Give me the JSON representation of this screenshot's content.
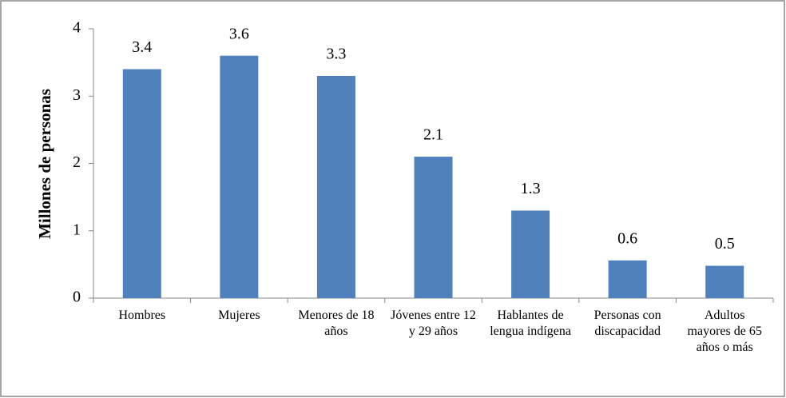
{
  "chart_data": {
    "type": "bar",
    "categories": [
      "Hombres",
      "Mujeres",
      "Menores de 18 años",
      "Jóvenes entre 12 y 29 años",
      "Hablantes de lengua indígena",
      "Personas con discapacidad",
      "Adultos mayores de 65 años o más"
    ],
    "values": [
      3.4,
      3.6,
      3.3,
      2.1,
      1.3,
      0.56,
      0.48
    ],
    "value_labels": [
      "3.4",
      "3.6",
      "3.3",
      "2.1",
      "1.3",
      "0.6",
      "0.5"
    ],
    "color": "#4f81bd",
    "y_label": "Millones de personas",
    "ylim": [
      0,
      4
    ],
    "yticks": [
      0,
      1,
      2,
      3,
      4
    ],
    "grid": false
  }
}
